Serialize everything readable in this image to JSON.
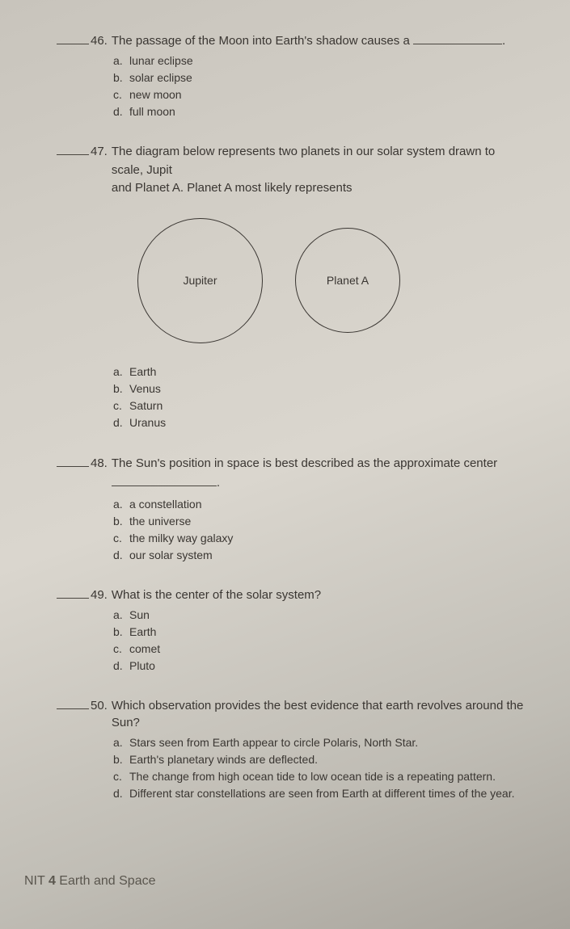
{
  "q46": {
    "num": "46.",
    "text": "The passage of the Moon into Earth's shadow causes a",
    "options": {
      "a": "lunar eclipse",
      "b": "solar eclipse",
      "c": "new moon",
      "d": "full moon"
    }
  },
  "q47": {
    "num": "47.",
    "text1": "The diagram below represents two planets in our solar system drawn to scale, Jupit",
    "text2": "and Planet A. Planet A most likely represents",
    "circle1": "Jupiter",
    "circle2": "Planet A",
    "options": {
      "a": "Earth",
      "b": "Venus",
      "c": "Saturn",
      "d": "Uranus"
    }
  },
  "q48": {
    "num": "48.",
    "text": "The Sun's position in space is best described as the approximate center",
    "options": {
      "a": "a constellation",
      "b": "the universe",
      "c": "the milky way galaxy",
      "d": "our solar system"
    }
  },
  "q49": {
    "num": "49.",
    "text": "What is the center of the solar system?",
    "options": {
      "a": "Sun",
      "b": "Earth",
      "c": "comet",
      "d": "Pluto"
    }
  },
  "q50": {
    "num": "50.",
    "text": "Which observation provides the best evidence that earth revolves around the Sun?",
    "options": {
      "a": "Stars seen from Earth appear to circle Polaris, North Star.",
      "b": "Earth's planetary winds are deflected.",
      "c": "The change from high ocean tide to low ocean tide is a repeating pattern.",
      "d": "Different star constellations are seen from Earth at different times of the year."
    }
  },
  "footer": {
    "prefix": "NIT ",
    "num": "4",
    "title": " Earth and Space"
  }
}
